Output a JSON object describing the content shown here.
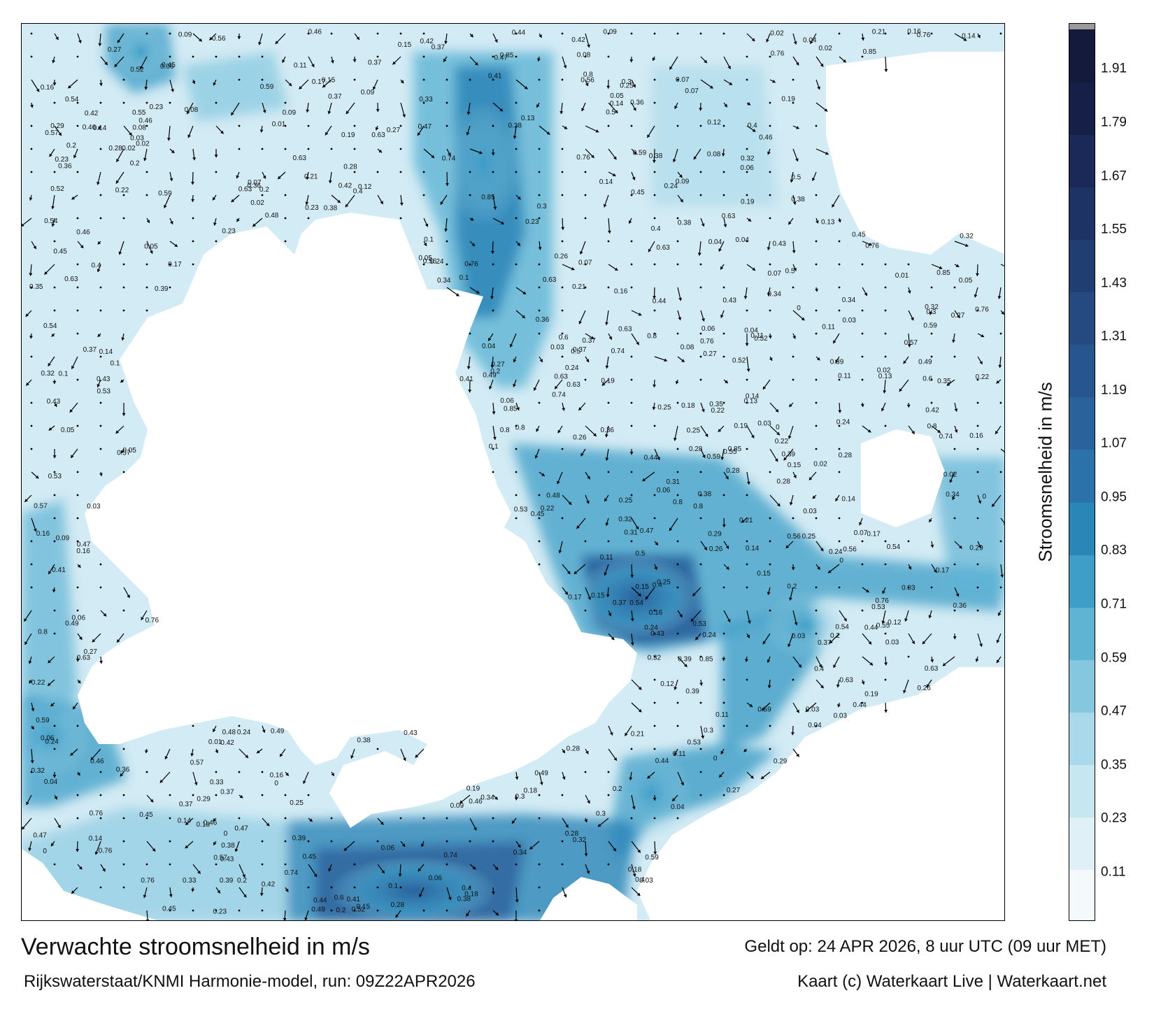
{
  "title": "Verwachte stroomsnelheid in m/s",
  "valid_time": "Geldt op: 24 APR 2026, 8 uur UTC (09 uur MET)",
  "model_run": "Rijkswaterstaat/KNMI Harmonie-model, run: 09Z22APR2026",
  "credit": "Kaart (c) Waterkaart Live | Waterkaart.net",
  "colorbar": {
    "title": "Stroomsnelheid in m/s",
    "ticks": [
      "0.11",
      "0.23",
      "0.35",
      "0.47",
      "0.59",
      "0.71",
      "0.83",
      "0.95",
      "1.07",
      "1.19",
      "1.31",
      "1.43",
      "1.55",
      "1.67",
      "1.79",
      "1.91"
    ],
    "range": [
      0,
      2.0
    ],
    "colors": [
      "#f4f9fc",
      "#dff0f6",
      "#c6e6f0",
      "#a9d9ea",
      "#84c7df",
      "#5fb4d4",
      "#3e9ec7",
      "#2b86b8",
      "#2a72a9",
      "#2a629c",
      "#27558f",
      "#244a81",
      "#213e73",
      "#1d3365",
      "#1a2957",
      "#161f48",
      "#131a3c"
    ]
  },
  "colors": {
    "land": "#ffffff",
    "frame": "#000000",
    "arrow": "#000000"
  },
  "chart_data": {
    "type": "heatmap",
    "quantity": "Stroomsnelheid in m/s",
    "strong_current_labels": [
      {
        "value": "0.74"
      },
      {
        "value": "0.8"
      },
      {
        "value": "0.76"
      },
      {
        "value": "0.85"
      },
      {
        "value": "0.63"
      },
      {
        "value": "0.6"
      },
      {
        "value": "0.59"
      },
      {
        "value": "0.57"
      },
      {
        "value": "0.56"
      },
      {
        "value": "0.55"
      },
      {
        "value": "0.54"
      },
      {
        "value": "0.53"
      },
      {
        "value": "0.52"
      },
      {
        "value": "0.5"
      },
      {
        "value": "0.49"
      },
      {
        "value": "0.48"
      },
      {
        "value": "0.47"
      },
      {
        "value": "0.46"
      },
      {
        "value": "0.45"
      },
      {
        "value": "0.44"
      },
      {
        "value": "0.43"
      },
      {
        "value": "0.42"
      },
      {
        "value": "0.41"
      },
      {
        "value": "0.4"
      },
      {
        "value": "0.39"
      },
      {
        "value": "0.38"
      },
      {
        "value": "0.37"
      },
      {
        "value": "0.36"
      },
      {
        "value": "0.35"
      },
      {
        "value": "0.34"
      },
      {
        "value": "0.33"
      },
      {
        "value": "0.32"
      },
      {
        "value": "0.31"
      },
      {
        "value": "0.3"
      },
      {
        "value": "0.29"
      },
      {
        "value": "0.28"
      },
      {
        "value": "0.27"
      },
      {
        "value": "0.26"
      },
      {
        "value": "0.25"
      },
      {
        "value": "0.24"
      },
      {
        "value": "0.23"
      },
      {
        "value": "0.22"
      },
      {
        "value": "0.21"
      },
      {
        "value": "0.2"
      },
      {
        "value": "0.19"
      },
      {
        "value": "0.18"
      },
      {
        "value": "0.17"
      },
      {
        "value": "0.16"
      },
      {
        "value": "0.15"
      },
      {
        "value": "0.14"
      },
      {
        "value": "0.13"
      },
      {
        "value": "0.12"
      },
      {
        "value": "0.11"
      },
      {
        "value": "0.1"
      },
      {
        "value": "0.09"
      },
      {
        "value": "0.08"
      },
      {
        "value": "0.07"
      },
      {
        "value": "0.06"
      },
      {
        "value": "0.05"
      },
      {
        "value": "0.04"
      },
      {
        "value": "0.03"
      },
      {
        "value": "0.02"
      },
      {
        "value": "0.01"
      },
      {
        "value": "0"
      }
    ]
  }
}
